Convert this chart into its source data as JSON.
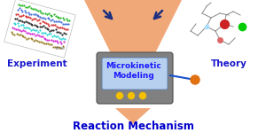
{
  "title": "Reaction Mechanism",
  "title_color": "#0000cc",
  "title_fontsize": 8.5,
  "label_experiment": "Experiment",
  "label_theory": "Theory",
  "label_microkinetic": "Microkinetic\nModeling",
  "label_color": "#1a1acc",
  "label_fontsize": 7.5,
  "microkinetic_label_color": "#1a1aff",
  "microkinetic_label_fontsize": 6.5,
  "bg_color": "#ffffff",
  "monitor_body_color": "#808080",
  "monitor_screen_color": "#b8d0f0",
  "monitor_screen_edge": "#6080b0",
  "funnel_color": "#f0a878",
  "arrow_color": "#1a2f80",
  "dot_colors": [
    "#f5c000",
    "#f5c000",
    "#f5c000"
  ],
  "antenna_dot_color": "#e07010"
}
